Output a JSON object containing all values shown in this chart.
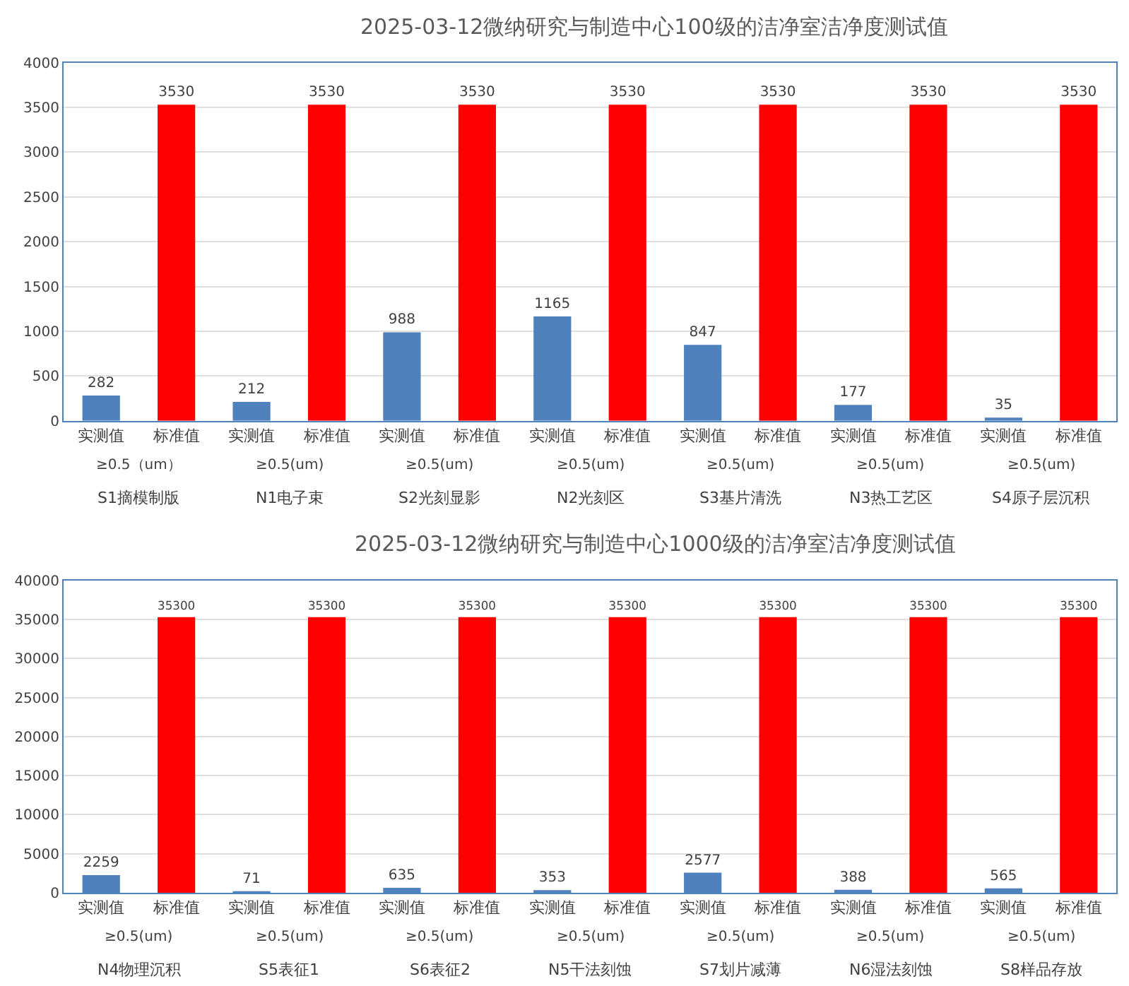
{
  "chart_data": [
    {
      "type": "bar",
      "title": "2025-03-12微纳研究与制造中心100级的洁净室洁净度测试值",
      "categories": [
        "实测值",
        "标准值",
        "实测值",
        "标准值",
        "实测值",
        "标准值",
        "实测值",
        "标准值",
        "实测值",
        "标准值",
        "实测值",
        "标准值",
        "实测值",
        "标准值"
      ],
      "values": [
        282,
        3530,
        212,
        3530,
        988,
        3530,
        1165,
        3530,
        847,
        3530,
        177,
        3530,
        35,
        3530
      ],
      "colors": [
        "#4f81bd",
        "#ff0000",
        "#4f81bd",
        "#ff0000",
        "#4f81bd",
        "#ff0000",
        "#4f81bd",
        "#ff0000",
        "#4f81bd",
        "#ff0000",
        "#4f81bd",
        "#ff0000",
        "#4f81bd",
        "#ff0000"
      ],
      "ylim": [
        0,
        4000
      ],
      "yticks": [
        0,
        500,
        1000,
        1500,
        2000,
        2500,
        3000,
        3500,
        4000
      ],
      "grid": "y",
      "data_labels": true,
      "annotations": [
        "≥0.5（um）",
        "S1摘模制版",
        "≥0.5(um)",
        "N1电子束",
        "≥0.5(um)",
        "S2光刻显影",
        "≥0.5(um)",
        "N2光刻区",
        "≥0.5(um)",
        "S3基片清洗",
        "≥0.5(um)",
        "N3热工艺区",
        "≥0.5(um)",
        "S4原子层沉积"
      ]
    },
    {
      "type": "bar",
      "title": "2025-03-12微纳研究与制造中心1000级的洁净室洁净度测试值",
      "categories": [
        "实测值",
        "标准值",
        "实测值",
        "标准值",
        "实测值",
        "标准值",
        "实测值",
        "标准值",
        "实测值",
        "标准值",
        "实测值",
        "标准值",
        "实测值",
        "标准值"
      ],
      "values": [
        2259,
        35300,
        71,
        35300,
        635,
        35300,
        353,
        35300,
        2577,
        35300,
        388,
        35300,
        565,
        35300
      ],
      "colors": [
        "#4f81bd",
        "#ff0000",
        "#4f81bd",
        "#ff0000",
        "#4f81bd",
        "#ff0000",
        "#4f81bd",
        "#ff0000",
        "#4f81bd",
        "#ff0000",
        "#4f81bd",
        "#ff0000",
        "#4f81bd",
        "#ff0000"
      ],
      "ylim": [
        0,
        40000
      ],
      "yticks": [
        0,
        5000,
        10000,
        15000,
        20000,
        25000,
        30000,
        35000,
        40000
      ],
      "grid": "y",
      "data_labels": true,
      "annotations": [
        "≥0.5(um)",
        "N4物理沉积",
        "≥0.5(um)",
        "S5表征1",
        "≥0.5(um)",
        "S6表征2",
        "≥0.5(um)",
        "N5干法刻蚀",
        "≥0.5(um)",
        "S7划片减薄",
        "≥0.5(um)",
        "N6湿法刻蚀",
        "≥0.5(um)",
        "S8样品存放"
      ]
    }
  ]
}
